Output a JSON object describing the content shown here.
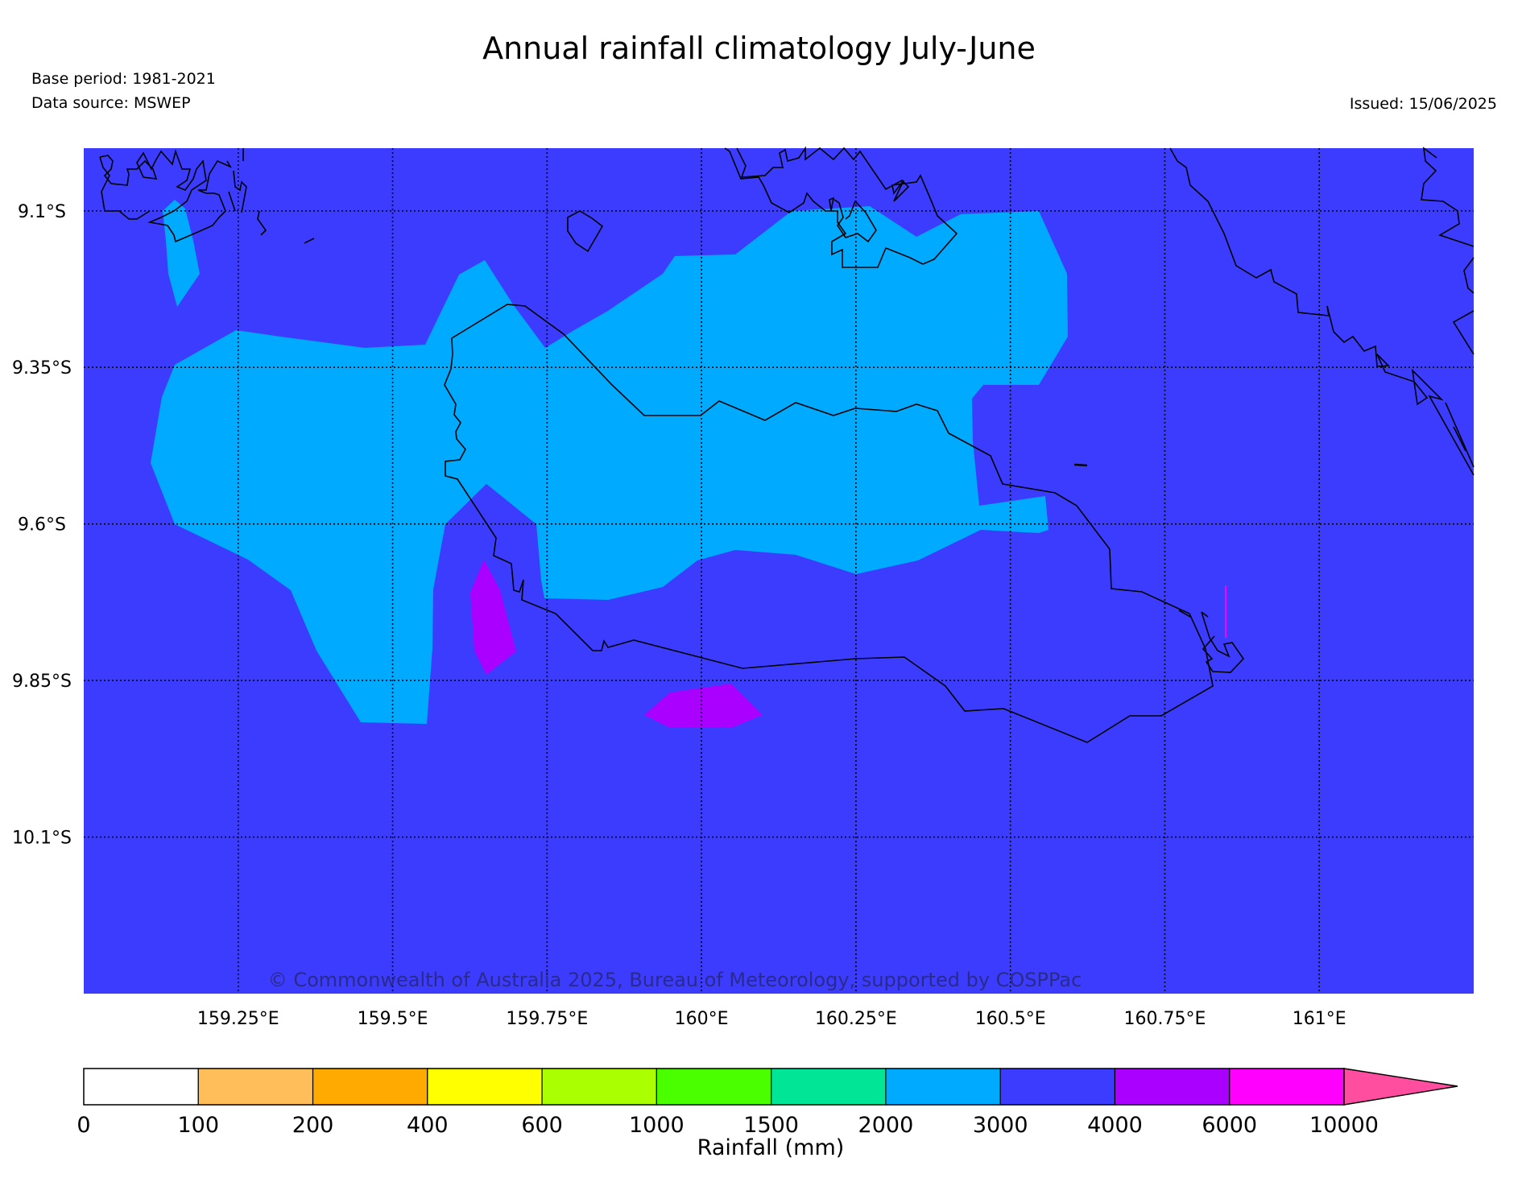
{
  "header": {
    "title": "Annual rainfall climatology July-June",
    "base_period": "Base period: 1981-2021",
    "data_source": "Data source: MSWEP",
    "issued": "Issued: 15/06/2025"
  },
  "map": {
    "lon_range": [
      159.0,
      161.25
    ],
    "lat_range": [
      -10.35,
      -9.0
    ],
    "lon_ticks": [
      {
        "value": 159.25,
        "label": "159.25°E"
      },
      {
        "value": 159.5,
        "label": "159.5°E"
      },
      {
        "value": 159.75,
        "label": "159.75°E"
      },
      {
        "value": 160.0,
        "label": "160°E"
      },
      {
        "value": 160.25,
        "label": "160.25°E"
      },
      {
        "value": 160.5,
        "label": "160.5°E"
      },
      {
        "value": 160.75,
        "label": "160.75°E"
      },
      {
        "value": 161.0,
        "label": "161°E"
      }
    ],
    "lat_ticks": [
      {
        "value": -9.1,
        "label": "9.1°S"
      },
      {
        "value": -9.35,
        "label": "9.35°S"
      },
      {
        "value": -9.6,
        "label": "9.6°S"
      },
      {
        "value": -9.85,
        "label": "9.85°S"
      },
      {
        "value": -10.1,
        "label": "10.1°S"
      }
    ],
    "grid": "dotted",
    "background_class": "3000-4000",
    "copyright": "© Commonwealth of Australia 2025, Bureau of Meteorology, supported by COSPPac"
  },
  "colorbar": {
    "title": "Rainfall (mm)",
    "boundaries": [
      "0",
      "100",
      "200",
      "400",
      "600",
      "1000",
      "1500",
      "2000",
      "3000",
      "4000",
      "6000",
      "10000"
    ],
    "colors": [
      "#ffffff",
      "#ffbe5a",
      "#ffaa00",
      "#ffff00",
      "#aaff00",
      "#4aff00",
      "#00e696",
      "#00aaff",
      "#3c3cff",
      "#aa00ff",
      "#ff00ff"
    ],
    "extend_color": "#ff4da0"
  }
}
